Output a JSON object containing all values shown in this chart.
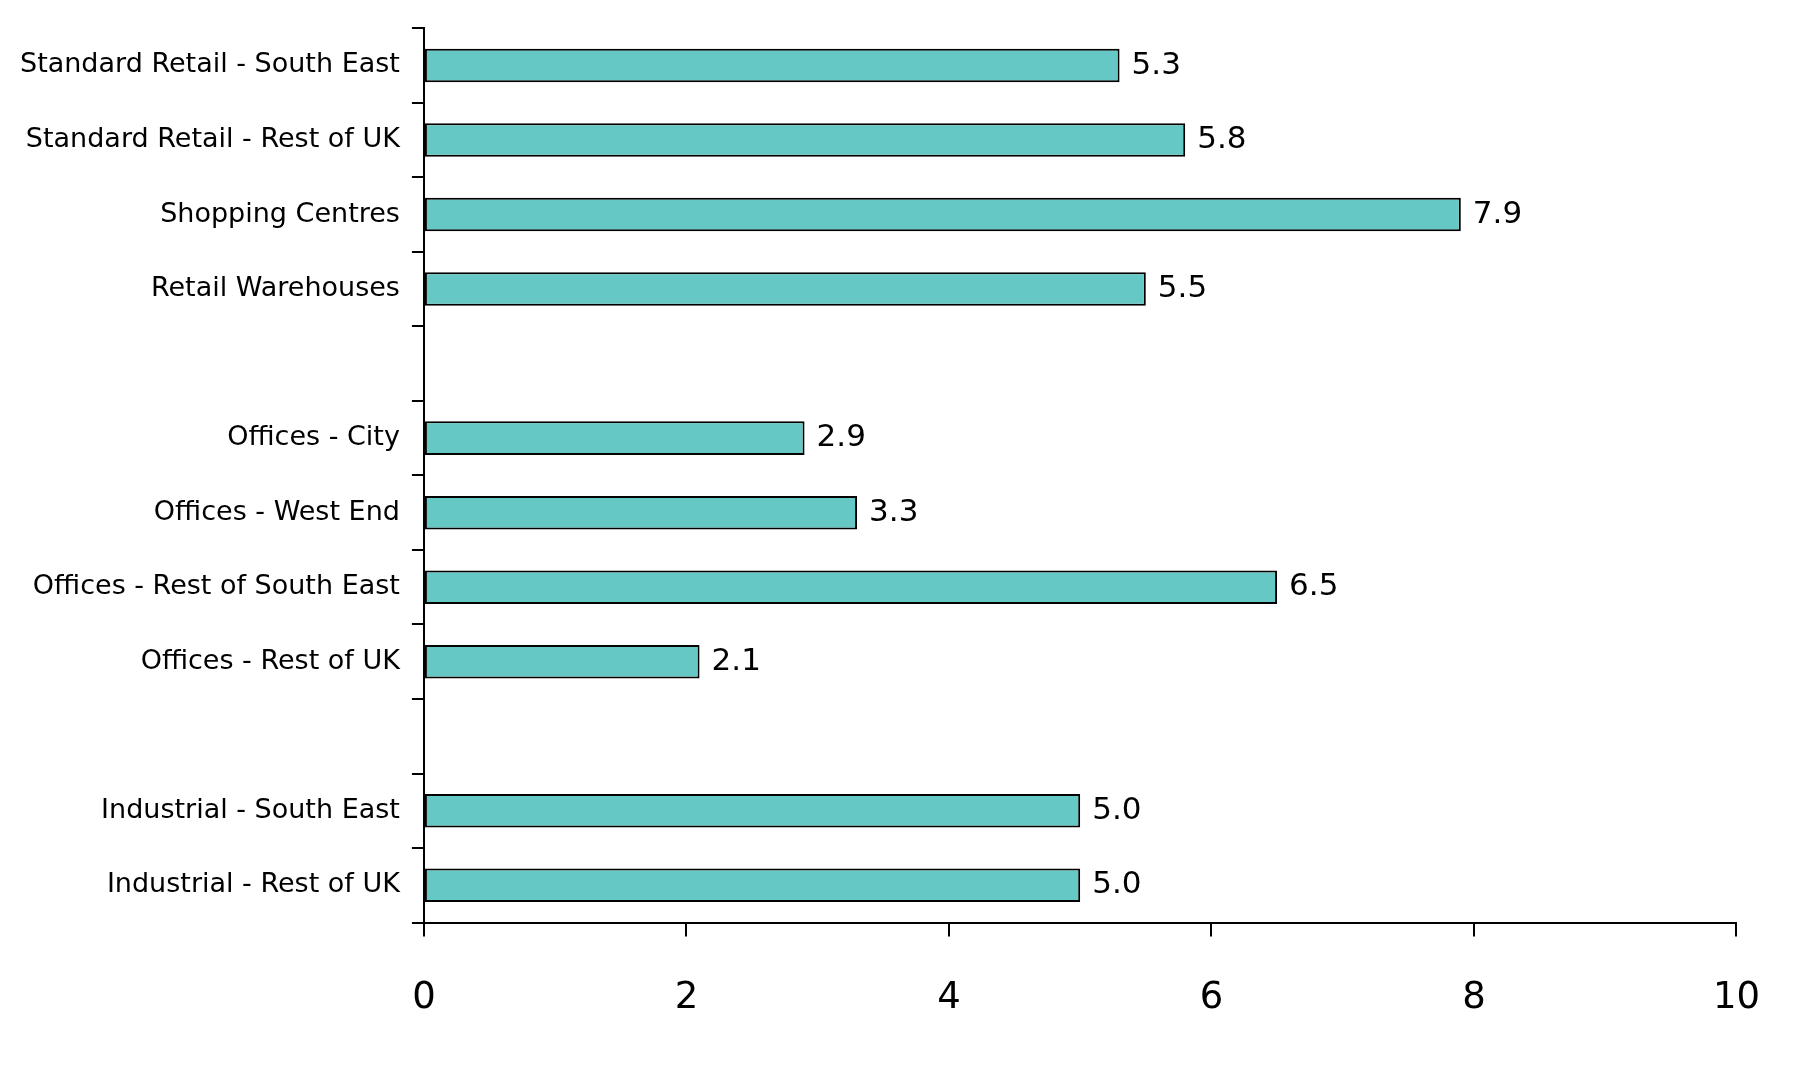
{
  "chart_data": {
    "type": "bar",
    "orientation": "horizontal",
    "categories": [
      "Standard Retail - South East",
      "Standard Retail - Rest of UK",
      "Shopping Centres",
      "Retail Warehouses",
      null,
      "Offices - City",
      "Offices - West End",
      "Offices - Rest of South East",
      "Offices - Rest of UK",
      null,
      "Industrial - South East",
      "Industrial - Rest of UK"
    ],
    "values": [
      5.3,
      5.8,
      7.9,
      5.5,
      null,
      2.9,
      3.3,
      6.5,
      2.1,
      null,
      5.0,
      5.0
    ],
    "value_labels": [
      "5.3",
      "5.8",
      "7.9",
      "5.5",
      null,
      "2.9",
      "3.3",
      "6.5",
      "2.1",
      null,
      "5.0",
      "5.0"
    ],
    "color": "#66c8c4",
    "xlim": [
      0,
      10
    ],
    "xticks": [
      0,
      2,
      4,
      6,
      8,
      10
    ],
    "grid": false,
    "legend": false
  }
}
